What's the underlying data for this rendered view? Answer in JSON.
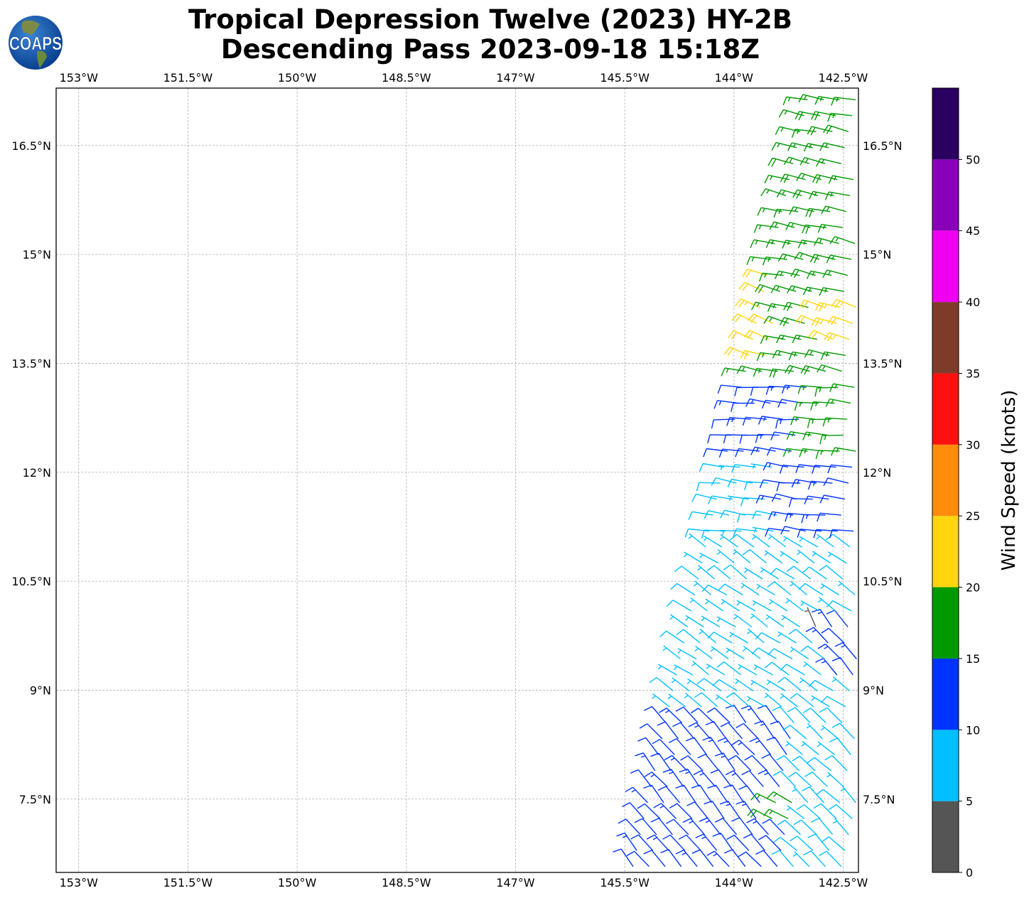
{
  "header": {
    "title_line1": "Tropical Depression Twelve (2023) HY-2B",
    "title_line2": "Descending Pass 2023-09-18 15:18Z",
    "logo_text": "COAPS"
  },
  "chart_data": {
    "type": "wind-barb-map",
    "title": "Tropical Depression Twelve (2023) HY-2B Descending Pass 2023-09-18 15:18Z",
    "lon_range": [
      -153.31,
      -142.29
    ],
    "lat_range": [
      6.49,
      17.29
    ],
    "grid": true,
    "lon_ticks": [
      -153,
      -151.5,
      -150,
      -148.5,
      -147,
      -145.5,
      -144,
      -142.5
    ],
    "lon_tick_labels": [
      "153°W",
      "151.5°W",
      "150°W",
      "148.5°W",
      "147°W",
      "145.5°W",
      "144°W",
      "142.5°W"
    ],
    "lat_ticks": [
      7.5,
      9,
      10.5,
      12,
      13.5,
      15,
      16.5
    ],
    "lat_tick_labels": [
      "7.5°N",
      "9°N",
      "10.5°N",
      "12°N",
      "13.5°N",
      "15°N",
      "16.5°N"
    ],
    "swath_west_edge": [
      [
        17.3,
        -142.95
      ],
      [
        6.5,
        -145.4
      ]
    ],
    "barb_spacing_deg": 0.22,
    "wind_zones": [
      {
        "lat": [
          13.2,
          17.4
        ],
        "lon": [
          -146,
          -142
        ],
        "speed_kt": 17,
        "dir_from_deg": 283
      },
      {
        "lat": [
          13.6,
          14.8
        ],
        "lon": [
          -146,
          -143.45
        ],
        "speed_kt": 22,
        "dir_from_deg": 290
      },
      {
        "lat": [
          13.7,
          14.3
        ],
        "lon": [
          -142.85,
          -142
        ],
        "speed_kt": 22,
        "dir_from_deg": 290
      },
      {
        "lat": [
          12.2,
          13.2
        ],
        "lon": [
          -146,
          -143.0
        ],
        "speed_kt": 12,
        "dir_from_deg": 275
      },
      {
        "lat": [
          12.2,
          13.2
        ],
        "lon": [
          -143.0,
          -142
        ],
        "speed_kt": 16,
        "dir_from_deg": 275
      },
      {
        "lat": [
          11.0,
          12.2
        ],
        "lon": [
          -146,
          -143.4
        ],
        "speed_kt": 8,
        "dir_from_deg": 278
      },
      {
        "lat": [
          11.0,
          12.2
        ],
        "lon": [
          -143.4,
          -142
        ],
        "speed_kt": 12,
        "dir_from_deg": 278
      },
      {
        "lat": [
          8.7,
          11.0
        ],
        "lon": [
          -146,
          -142
        ],
        "speed_kt": 7,
        "dir_from_deg": 305
      },
      {
        "lat": [
          9.0,
          10.0
        ],
        "lon": [
          -142.75,
          -142
        ],
        "speed_kt": 12,
        "dir_from_deg": 320
      },
      {
        "lat": [
          6.4,
          8.7
        ],
        "lon": [
          -146,
          -143.2
        ],
        "speed_kt": 12,
        "dir_from_deg": 320
      },
      {
        "lat": [
          6.4,
          8.7
        ],
        "lon": [
          -143.2,
          -142
        ],
        "speed_kt": 8,
        "dir_from_deg": 315
      },
      {
        "lat": [
          7.2,
          7.6
        ],
        "lon": [
          -143.5,
          -143.2
        ],
        "speed_kt": 17,
        "dir_from_deg": 300
      },
      {
        "lat": [
          10.2,
          10.4
        ],
        "lon": [
          -142.95,
          -142.8
        ],
        "speed_kt": 3,
        "dir_from_deg": 310
      },
      {
        "lat": [
          9.7,
          9.9
        ],
        "lon": [
          -142.95,
          -142.8
        ],
        "speed_kt": 3,
        "dir_from_deg": 330
      }
    ],
    "colorbar": {
      "label": "Wind Speed (knots)",
      "range": [
        0,
        55
      ],
      "ticks": [
        0,
        5,
        10,
        15,
        20,
        25,
        30,
        35,
        40,
        45,
        50
      ],
      "tick_labels": [
        "0",
        "5",
        "10",
        "15",
        "20",
        "25",
        "30",
        "35",
        "40",
        "45",
        "50"
      ],
      "bins": [
        {
          "min": 0,
          "max": 5,
          "color": "#555555"
        },
        {
          "min": 5,
          "max": 10,
          "color": "#00bfff"
        },
        {
          "min": 10,
          "max": 15,
          "color": "#0033ff"
        },
        {
          "min": 15,
          "max": 20,
          "color": "#009900"
        },
        {
          "min": 20,
          "max": 25,
          "color": "#ffd50f"
        },
        {
          "min": 25,
          "max": 30,
          "color": "#ff8c0a"
        },
        {
          "min": 30,
          "max": 35,
          "color": "#ff1010"
        },
        {
          "min": 35,
          "max": 40,
          "color": "#7f3b2a"
        },
        {
          "min": 40,
          "max": 45,
          "color": "#f000f0"
        },
        {
          "min": 45,
          "max": 50,
          "color": "#8800b8"
        },
        {
          "min": 50,
          "max": 55,
          "color": "#2a0060"
        }
      ]
    }
  }
}
